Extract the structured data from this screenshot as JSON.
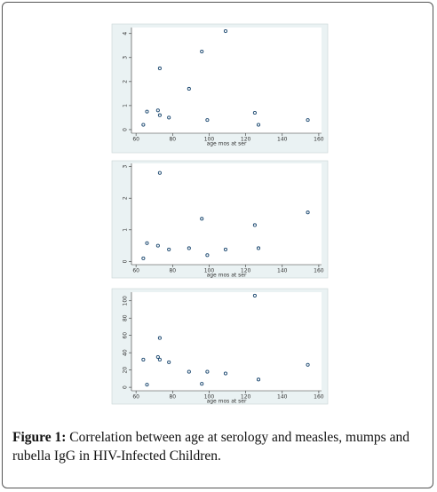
{
  "chart_data": [
    {
      "type": "scatter",
      "x_label": "age mos at ser",
      "color": "#1a476f",
      "x": [
        64,
        66,
        72,
        73,
        73,
        78,
        89,
        96,
        99,
        109,
        125,
        127,
        154
      ],
      "values": [
        0.2,
        0.75,
        0.8,
        0.6,
        2.55,
        0.5,
        1.7,
        3.25,
        0.4,
        4.1,
        0.7,
        0.2,
        0.4
      ],
      "xlim": [
        57.5,
        161.5
      ],
      "xticks": [
        60,
        80,
        100,
        120,
        140,
        160
      ],
      "ylim": [
        -0.15,
        4.25
      ],
      "yticks": [
        0,
        1,
        2,
        3,
        4
      ]
    },
    {
      "type": "scatter",
      "x_label": "age mos at ser",
      "color": "#1a476f",
      "x": [
        64,
        66,
        72,
        73,
        78,
        89,
        96,
        99,
        109,
        125,
        127,
        154
      ],
      "values": [
        0.1,
        0.58,
        0.5,
        2.8,
        0.38,
        0.42,
        1.35,
        0.2,
        0.38,
        1.15,
        0.42,
        1.55
      ],
      "xlim": [
        57.5,
        161.5
      ],
      "xticks": [
        60,
        80,
        100,
        120,
        140,
        160
      ],
      "ylim": [
        -0.1,
        3.1
      ],
      "yticks": [
        0,
        1,
        2,
        3
      ]
    },
    {
      "type": "scatter",
      "x_label": "age mos at ser",
      "color": "#1a476f",
      "x": [
        64,
        66,
        72,
        73,
        73,
        78,
        89,
        96,
        99,
        109,
        125,
        127,
        154
      ],
      "values": [
        32,
        3,
        35,
        57,
        32,
        29,
        18,
        4,
        18,
        16,
        106,
        9,
        26
      ],
      "xlim": [
        57.5,
        161.5
      ],
      "xticks": [
        60,
        80,
        100,
        120,
        140,
        160
      ],
      "ylim": [
        -4,
        110
      ],
      "yticks": [
        0,
        20,
        40,
        60,
        80,
        100
      ]
    }
  ],
  "caption": {
    "label": "Figure 1:",
    "text": "Correlation between age at serology and measles, mumps and rubella IgG in HIV-Infected Children."
  }
}
